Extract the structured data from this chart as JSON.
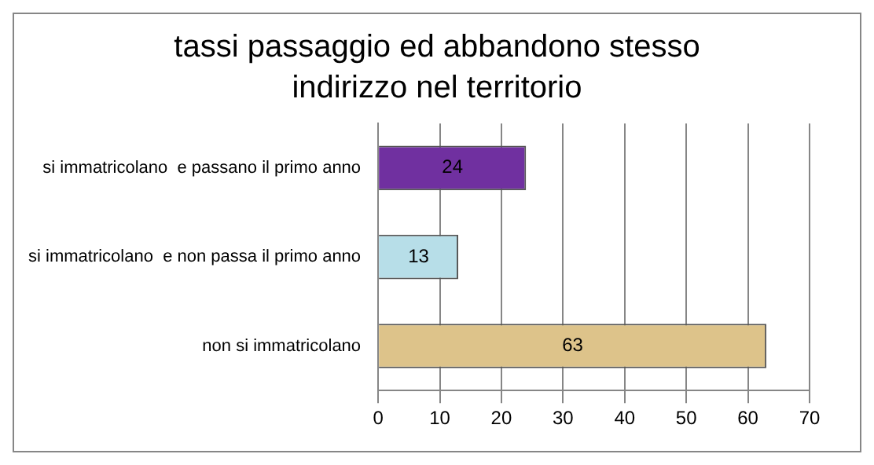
{
  "chart_data": {
    "type": "bar",
    "orientation": "horizontal",
    "title": "tassi passaggio ed abbandono stesso indirizzo nel territorio",
    "categories": [
      "si immatricolano  e passano il primo anno",
      "si immatricolano  e non passa il primo anno",
      "non si immatricolano"
    ],
    "values": [
      24,
      13,
      63
    ],
    "colors": [
      "#7030a0",
      "#b7dee8",
      "#ddc38a"
    ],
    "xlim": [
      0,
      70
    ],
    "xticks": [
      0,
      10,
      20,
      30,
      40,
      50,
      60,
      70
    ],
    "grid": "x",
    "legend": false,
    "data_labels": true
  }
}
